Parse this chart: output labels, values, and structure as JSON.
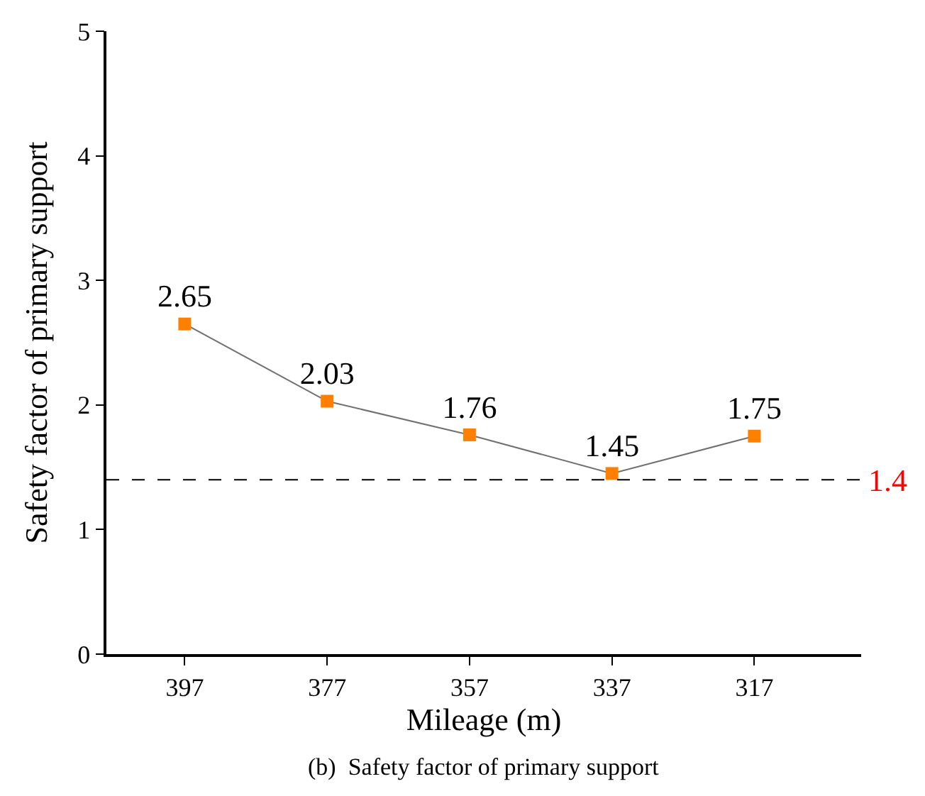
{
  "chart_data": {
    "type": "line",
    "xlabel": "Mileage (m)",
    "ylabel": "Safety factor of primary support",
    "categories": [
      "397",
      "377",
      "357",
      "337",
      "317"
    ],
    "series": [
      {
        "color": "#ff8000",
        "values": [
          2.65,
          2.03,
          1.76,
          1.45,
          1.75
        ]
      }
    ],
    "ylim": [
      0,
      5
    ],
    "yticks": [
      0,
      1,
      2,
      3,
      4,
      5
    ],
    "legend": false,
    "marker": "square",
    "line_style": "solid",
    "data_labels": true,
    "ref_lines": [
      {
        "axis": "y",
        "value": 1.4,
        "label": "1.4",
        "color": "#000000",
        "line_style": "dashed"
      }
    ],
    "annotations": [
      "(b)  Safety factor of primary support"
    ]
  }
}
